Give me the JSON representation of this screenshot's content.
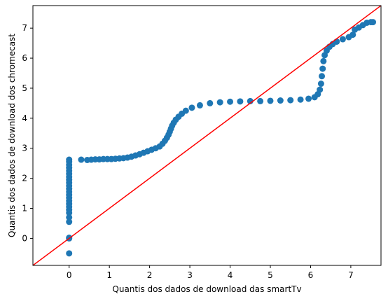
{
  "chart_data": {
    "type": "scatter",
    "title": "",
    "xlabel": "Quantis dos dados de download das smartTv",
    "ylabel": "Quantis dos dados de download dos chromecast",
    "xlim": [
      -0.9,
      7.75
    ],
    "ylim": [
      -0.9,
      7.75
    ],
    "xticks": [
      "0",
      "1",
      "2",
      "3",
      "4",
      "5",
      "6",
      "7"
    ],
    "yticks": [
      "0",
      "1",
      "2",
      "3",
      "4",
      "5",
      "6",
      "7"
    ],
    "grid": false,
    "legend": "none",
    "marker_color": "#1f77b4",
    "reference_line": {
      "type": "y=x",
      "color": "#ff0000"
    },
    "series": [
      {
        "points": [
          [
            0.0,
            -0.5
          ],
          [
            0.0,
            0.0
          ],
          [
            0.0,
            0.02
          ],
          [
            0.0,
            0.55
          ],
          [
            0.0,
            0.7
          ],
          [
            0.0,
            0.85
          ],
          [
            0.0,
            0.95
          ],
          [
            0.0,
            1.05
          ],
          [
            0.0,
            1.15
          ],
          [
            0.0,
            1.25
          ],
          [
            0.0,
            1.35
          ],
          [
            0.0,
            1.45
          ],
          [
            0.0,
            1.55
          ],
          [
            0.0,
            1.65
          ],
          [
            0.0,
            1.75
          ],
          [
            0.0,
            1.85
          ],
          [
            0.0,
            1.95
          ],
          [
            0.0,
            2.05
          ],
          [
            0.0,
            2.15
          ],
          [
            0.0,
            2.25
          ],
          [
            0.0,
            2.35
          ],
          [
            0.0,
            2.45
          ],
          [
            0.0,
            2.55
          ],
          [
            0.0,
            2.62
          ],
          [
            0.3,
            2.62
          ],
          [
            0.45,
            2.61
          ],
          [
            0.55,
            2.62
          ],
          [
            0.65,
            2.63
          ],
          [
            0.75,
            2.63
          ],
          [
            0.85,
            2.64
          ],
          [
            0.95,
            2.64
          ],
          [
            1.05,
            2.64
          ],
          [
            1.15,
            2.65
          ],
          [
            1.25,
            2.66
          ],
          [
            1.35,
            2.67
          ],
          [
            1.45,
            2.69
          ],
          [
            1.55,
            2.72
          ],
          [
            1.65,
            2.76
          ],
          [
            1.75,
            2.8
          ],
          [
            1.85,
            2.85
          ],
          [
            1.95,
            2.9
          ],
          [
            2.05,
            2.95
          ],
          [
            2.15,
            3.0
          ],
          [
            2.25,
            3.06
          ],
          [
            2.32,
            3.15
          ],
          [
            2.38,
            3.25
          ],
          [
            2.43,
            3.35
          ],
          [
            2.47,
            3.45
          ],
          [
            2.5,
            3.55
          ],
          [
            2.53,
            3.65
          ],
          [
            2.56,
            3.75
          ],
          [
            2.6,
            3.85
          ],
          [
            2.65,
            3.95
          ],
          [
            2.72,
            4.05
          ],
          [
            2.8,
            4.15
          ],
          [
            2.9,
            4.25
          ],
          [
            3.05,
            4.35
          ],
          [
            3.25,
            4.43
          ],
          [
            3.5,
            4.5
          ],
          [
            3.75,
            4.53
          ],
          [
            4.0,
            4.55
          ],
          [
            4.25,
            4.56
          ],
          [
            4.5,
            4.57
          ],
          [
            4.75,
            4.57
          ],
          [
            5.0,
            4.58
          ],
          [
            5.25,
            4.59
          ],
          [
            5.5,
            4.6
          ],
          [
            5.75,
            4.62
          ],
          [
            5.95,
            4.65
          ],
          [
            6.1,
            4.7
          ],
          [
            6.18,
            4.8
          ],
          [
            6.23,
            4.95
          ],
          [
            6.26,
            5.15
          ],
          [
            6.28,
            5.4
          ],
          [
            6.3,
            5.65
          ],
          [
            6.32,
            5.9
          ],
          [
            6.35,
            6.1
          ],
          [
            6.4,
            6.25
          ],
          [
            6.47,
            6.38
          ],
          [
            6.55,
            6.47
          ],
          [
            6.65,
            6.55
          ],
          [
            6.8,
            6.63
          ],
          [
            6.95,
            6.7
          ],
          [
            7.05,
            6.78
          ],
          [
            7.1,
            6.95
          ],
          [
            7.2,
            7.02
          ],
          [
            7.3,
            7.1
          ],
          [
            7.4,
            7.18
          ],
          [
            7.5,
            7.2
          ],
          [
            7.55,
            7.2
          ]
        ]
      }
    ]
  }
}
